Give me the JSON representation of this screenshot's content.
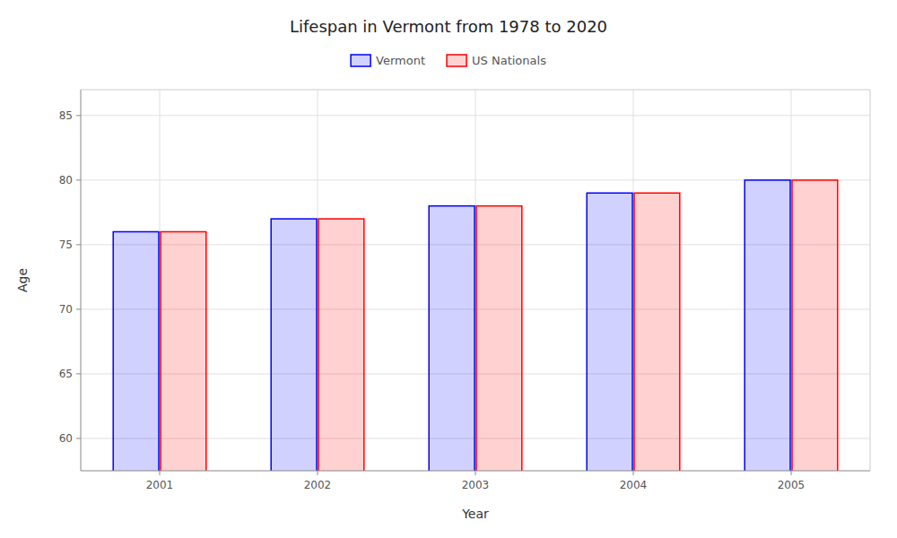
{
  "chart_data": {
    "type": "bar",
    "title": "Lifespan in Vermont from 1978 to 2020",
    "x_label": "Year",
    "y_label": "Age",
    "categories": [
      "2001",
      "2002",
      "2003",
      "2004",
      "2005"
    ],
    "series": [
      {
        "name": "Vermont",
        "color": "#0000ff",
        "values": [
          76,
          77,
          78,
          79,
          80
        ]
      },
      {
        "name": "US Nationals",
        "color": "#ff0000",
        "values": [
          76,
          77,
          78,
          79,
          80
        ]
      }
    ],
    "ylim": [
      57.5,
      87
    ],
    "yticks": [
      60,
      65,
      70,
      75,
      80,
      85
    ],
    "grid": true,
    "legend": "top"
  }
}
